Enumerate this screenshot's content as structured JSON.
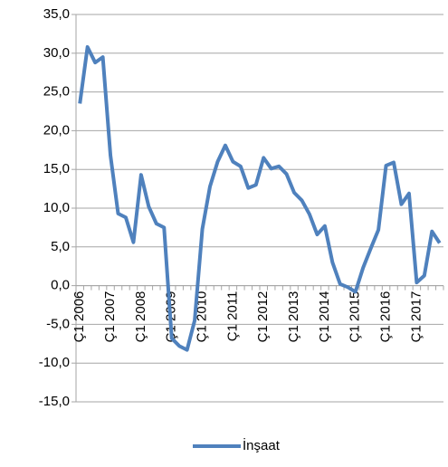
{
  "chart_data": {
    "type": "line",
    "categories": [
      "Ç1 2006",
      null,
      null,
      null,
      "Ç1 2007",
      null,
      null,
      null,
      "Ç1 2008",
      null,
      null,
      null,
      "Ç1 2009",
      null,
      null,
      null,
      "Ç1 2010",
      null,
      null,
      null,
      "Ç1 2011",
      null,
      null,
      null,
      "Ç1 2012",
      null,
      null,
      null,
      "Ç1 2013",
      null,
      null,
      null,
      "Ç1 2014",
      null,
      null,
      null,
      "Ç1 2015",
      null,
      null,
      null,
      "Ç1 2016",
      null,
      null,
      null,
      "Ç1 2017",
      null,
      null,
      null
    ],
    "series": [
      {
        "name": "İnşaat",
        "color": "#4f81bd",
        "values": [
          23.5,
          30.8,
          28.8,
          29.5,
          16.8,
          9.3,
          8.8,
          5.6,
          14.3,
          10.2,
          8.0,
          7.5,
          -6.8,
          -7.8,
          -8.3,
          -4.5,
          7.3,
          12.8,
          16.0,
          18.1,
          16.0,
          15.4,
          12.6,
          13.0,
          16.5,
          15.1,
          15.4,
          14.4,
          12.0,
          11.0,
          9.2,
          6.6,
          7.7,
          3.0,
          0.2,
          -0.2,
          -0.8,
          2.3,
          4.8,
          7.2,
          15.5,
          15.9,
          10.5,
          11.9,
          0.4,
          1.3,
          7.0,
          5.5
        ]
      }
    ],
    "ylim": [
      -15,
      35
    ],
    "yticks": [
      {
        "value": -15,
        "label": "-15,0"
      },
      {
        "value": -10,
        "label": "-10,0"
      },
      {
        "value": -5,
        "label": "-5,0"
      },
      {
        "value": 0,
        "label": "0,0"
      },
      {
        "value": 5,
        "label": "5,0"
      },
      {
        "value": 10,
        "label": "10,0"
      },
      {
        "value": 15,
        "label": "15,0"
      },
      {
        "value": 20,
        "label": "20,0"
      },
      {
        "value": 25,
        "label": "25,0"
      },
      {
        "value": 30,
        "label": "30,0"
      },
      {
        "value": 35,
        "label": "35,0"
      }
    ],
    "grid": true,
    "legend": "bottom"
  }
}
